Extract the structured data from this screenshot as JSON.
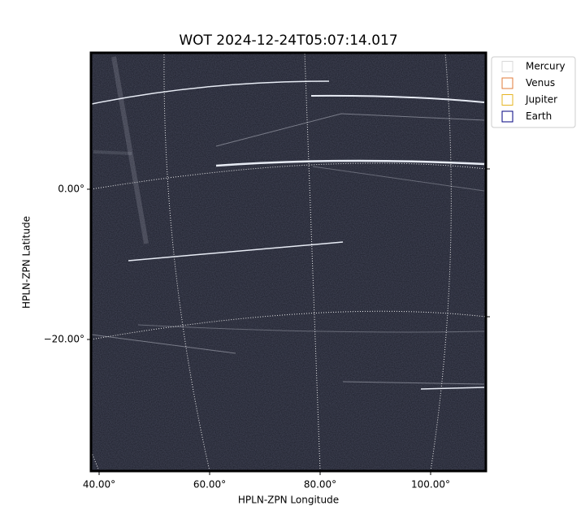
{
  "chart_data": {
    "type": "image",
    "title": "WOT 2024-12-24T05:07:14.017",
    "xlabel": "HPLN-ZPN Longitude",
    "ylabel": "HPLN-ZPN Latitude",
    "xticks": [
      {
        "value": 40,
        "label": "40.00°"
      },
      {
        "value": 60,
        "label": "60.00°"
      },
      {
        "value": 80,
        "label": "80.00°"
      },
      {
        "value": 100,
        "label": "100.00°"
      }
    ],
    "yticks": [
      {
        "value": 0,
        "label": "0.00°"
      },
      {
        "value": -20,
        "label": "−20.00°"
      }
    ],
    "grid": true,
    "legend_position": "upper right",
    "series": [
      {
        "name": "Mercury",
        "color": "#d9d9d9"
      },
      {
        "name": "Venus",
        "color": "#e07b39"
      },
      {
        "name": "Jupiter",
        "color": "#e6b422"
      },
      {
        "name": "Earth",
        "color": "#000080"
      }
    ]
  }
}
